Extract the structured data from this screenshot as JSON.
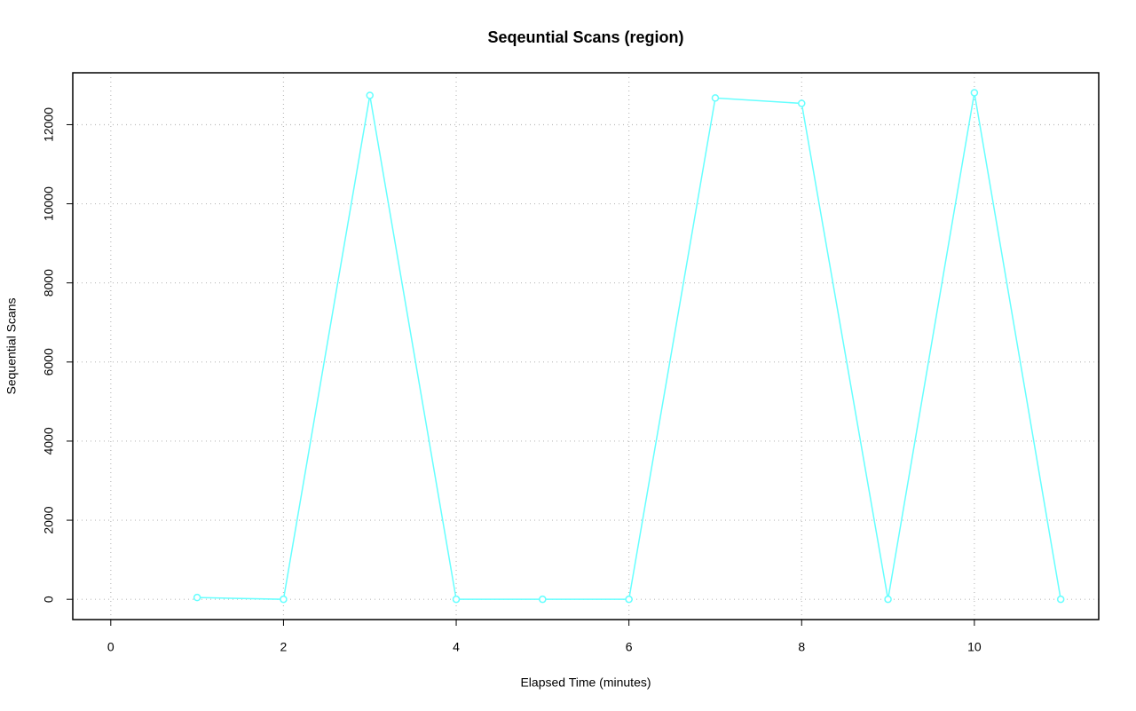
{
  "chart_data": {
    "type": "line",
    "title": "Seqeuntial Scans (region)",
    "x_label": "Elapsed Time (minutes)",
    "y_label": "Sequential Scans",
    "x": [
      1,
      2,
      3,
      4,
      5,
      6,
      7,
      8,
      9,
      10,
      11
    ],
    "series": [
      {
        "color": "#66ffff",
        "values": [
          45,
          0,
          12741,
          0,
          0,
          0,
          12674,
          12539,
          0,
          12808,
          0
        ]
      }
    ],
    "xlim": [
      -0.44,
      11.44
    ],
    "xticks": [
      0,
      2,
      4,
      6,
      8,
      10
    ],
    "ylim": [
      -512,
      13312
    ],
    "yticks": [
      0,
      2000,
      4000,
      6000,
      8000,
      10000,
      12000
    ],
    "grid": true
  }
}
